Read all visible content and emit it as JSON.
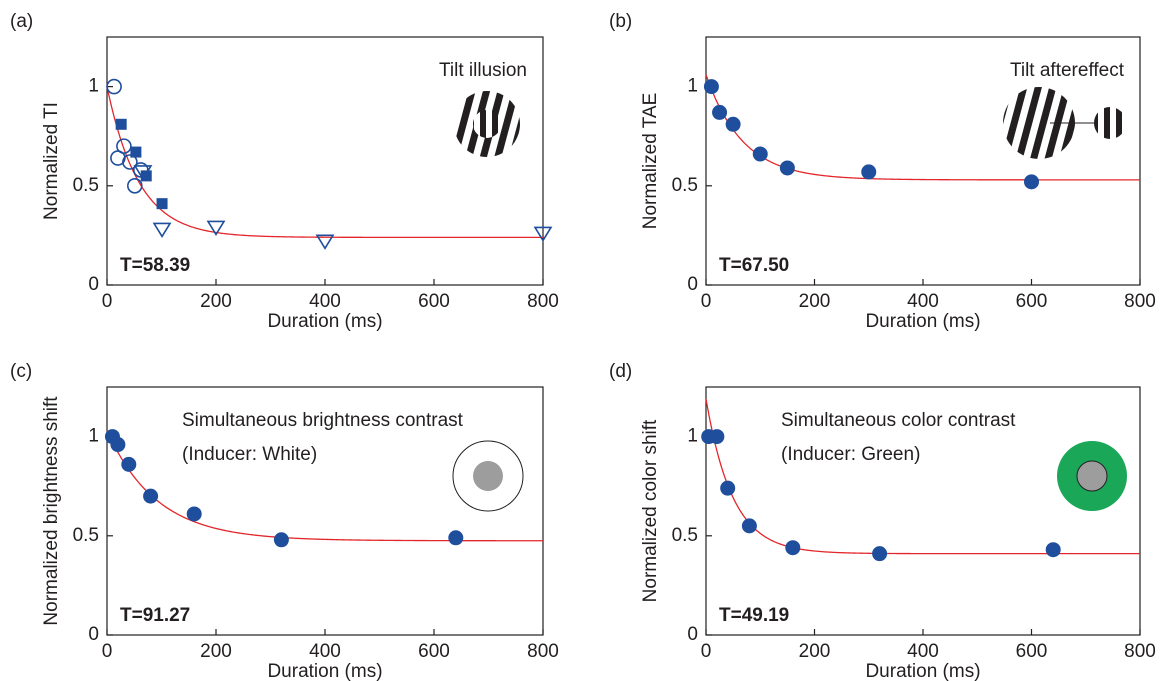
{
  "chart_data": [
    {
      "type": "scatter",
      "panel": "(a)",
      "ylabel": "Normalized TI",
      "xlabel": "Duration (ms)",
      "annotations": [
        "Tilt illusion"
      ],
      "fit": {
        "tau": {
          "value": 58.39,
          "label": "T=58.39"
        },
        "start": 1.0,
        "asymptote": 0.24,
        "color": "#e3262b"
      },
      "xlim": [
        0,
        800
      ],
      "ylim": [
        0,
        1.25
      ],
      "xticks": [
        0,
        200,
        400,
        600,
        800
      ],
      "yticks": [
        0,
        0.5,
        1
      ],
      "series": [
        {
          "marker": "circle-open",
          "color": "#1f4e9c",
          "x": [
            13,
            20,
            31,
            42,
            51,
            62
          ],
          "values": [
            1.0,
            0.64,
            0.7,
            0.62,
            0.5,
            0.58
          ]
        },
        {
          "marker": "square",
          "color": "#1f4e9c",
          "x": [
            26,
            53,
            72,
            101
          ],
          "values": [
            0.81,
            0.67,
            0.55,
            0.41
          ]
        },
        {
          "marker": "triangle-open",
          "color": "#1f4e9c",
          "x": [
            66,
            101,
            200,
            400,
            800
          ],
          "values": [
            0.57,
            0.28,
            0.29,
            0.22,
            0.26
          ]
        }
      ]
    },
    {
      "type": "scatter",
      "panel": "(b)",
      "ylabel": "Normalized TAE",
      "xlabel": "Duration (ms)",
      "annotations": [
        "Tilt aftereffect"
      ],
      "fit": {
        "tau": {
          "value": 67.5,
          "label": "T=67.50"
        },
        "start": 1.06,
        "asymptote": 0.53,
        "color": "#e3262b"
      },
      "xlim": [
        0,
        800
      ],
      "ylim": [
        0,
        1.25
      ],
      "xticks": [
        0,
        200,
        400,
        600,
        800
      ],
      "yticks": [
        0,
        0.5,
        1
      ],
      "series": [
        {
          "marker": "circle",
          "color": "#1f4e9c",
          "x": [
            10,
            25,
            50,
            100,
            150,
            300,
            600
          ],
          "values": [
            1.0,
            0.87,
            0.81,
            0.66,
            0.59,
            0.57,
            0.52
          ]
        }
      ]
    },
    {
      "type": "scatter",
      "panel": "(c)",
      "ylabel": "Normalized brightness shift",
      "xlabel": "Duration (ms)",
      "annotations": [
        "Simultaneous brightness contrast",
        "(Inducer: White)"
      ],
      "fit": {
        "tau": {
          "value": 91.27,
          "label": "T=91.27"
        },
        "start": 1.03,
        "asymptote": 0.475,
        "color": "#e3262b"
      },
      "xlim": [
        0,
        800
      ],
      "ylim": [
        0,
        1.25
      ],
      "xticks": [
        0,
        200,
        400,
        600,
        800
      ],
      "yticks": [
        0,
        0.5,
        1
      ],
      "series": [
        {
          "marker": "circle",
          "color": "#1f4e9c",
          "x": [
            10,
            20,
            40,
            80,
            160,
            320,
            640
          ],
          "values": [
            1.0,
            0.96,
            0.86,
            0.7,
            0.61,
            0.48,
            0.49
          ]
        }
      ]
    },
    {
      "type": "scatter",
      "panel": "(d)",
      "ylabel": "Normalized color shift",
      "xlabel": "Duration (ms)",
      "annotations": [
        "Simultaneous color contrast",
        "(Inducer: Green)"
      ],
      "fit": {
        "tau": {
          "value": 49.19,
          "label": "T=49.19"
        },
        "start": 1.19,
        "asymptote": 0.41,
        "color": "#e3262b"
      },
      "xlim": [
        0,
        800
      ],
      "ylim": [
        0,
        1.25
      ],
      "xticks": [
        0,
        200,
        400,
        600,
        800
      ],
      "yticks": [
        0,
        0.5,
        1
      ],
      "series": [
        {
          "marker": "circle",
          "color": "#1f4e9c",
          "x": [
            5,
            20,
            40,
            80,
            160,
            320,
            640
          ],
          "values": [
            1.0,
            1.0,
            0.74,
            0.55,
            0.44,
            0.41,
            0.43
          ]
        }
      ]
    }
  ]
}
